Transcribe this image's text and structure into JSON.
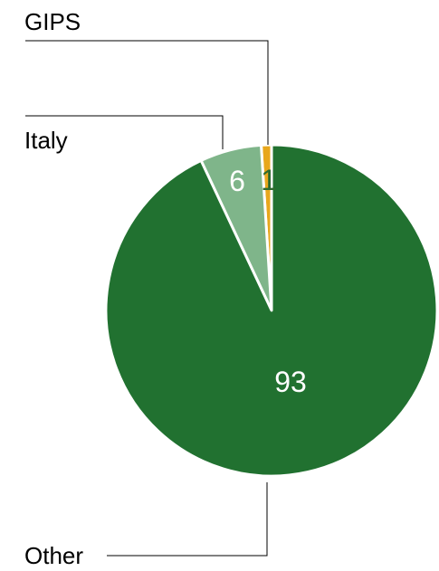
{
  "chart_data": {
    "type": "pie",
    "slices": [
      {
        "label": "GIPS",
        "value": 1,
        "color": "#E8A71C",
        "value_color": "#2E6B2E"
      },
      {
        "label": "Italy",
        "value": 6,
        "color": "#7FB58A",
        "value_color": "#ffffff"
      },
      {
        "label": "Other",
        "value": 93,
        "color": "#217130",
        "value_color": "#ffffff"
      }
    ],
    "start": "top",
    "direction": "counterclockwise",
    "slice_border_color": "#ffffff",
    "leader_line_color": "#000000"
  }
}
